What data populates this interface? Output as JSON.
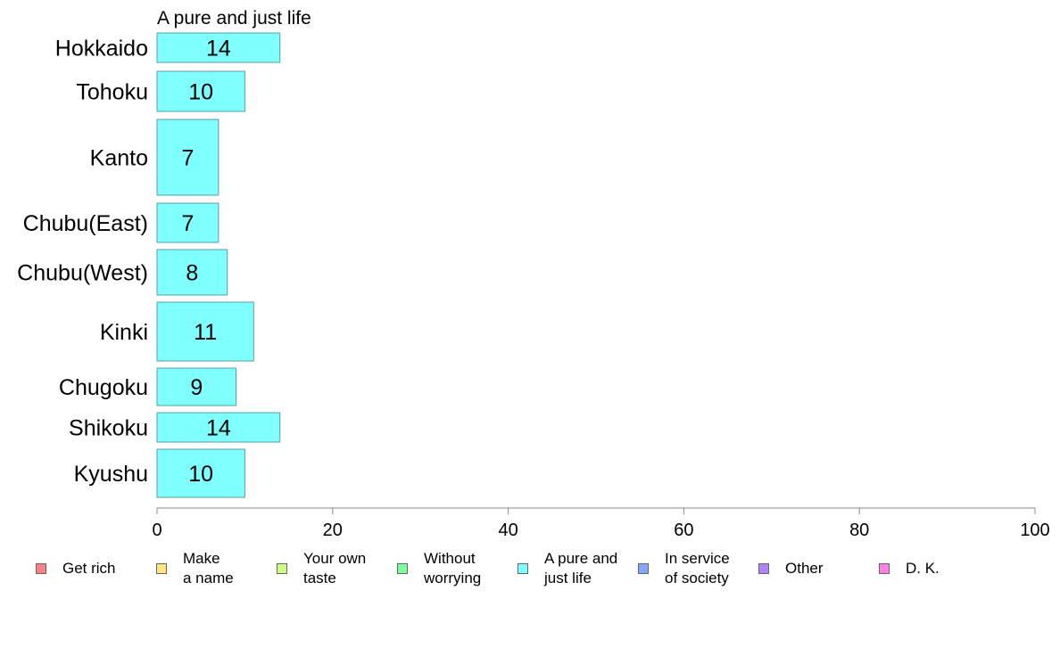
{
  "chart_data": {
    "type": "bar",
    "orientation": "horizontal",
    "title": "A pure and just life",
    "categories": [
      "Hokkaido",
      "Tohoku",
      "Kanto",
      "Chubu(East)",
      "Chubu(West)",
      "Kinki",
      "Chugoku",
      "Shikoku",
      "Kyushu"
    ],
    "values": [
      14,
      10,
      7,
      7,
      8,
      11,
      9,
      14,
      10
    ],
    "bar_labels": [
      "14",
      "10",
      "7",
      "7",
      "8",
      "11",
      "9",
      "14",
      "10"
    ],
    "xlim": [
      0,
      100
    ],
    "x_ticks": [
      0,
      20,
      40,
      60,
      80,
      100
    ],
    "x_tick_labels": [
      "0",
      "20",
      "40",
      "60",
      "80",
      "100"
    ],
    "bar_color": "#80ffff",
    "bar_edge_color": "#5a9ea0",
    "grid": false,
    "legend_position": "bottom",
    "legend": [
      {
        "label": "Get rich",
        "color": "#ff8080"
      },
      {
        "label": "Make\na name",
        "color": "#ffe680"
      },
      {
        "label": "Your own\ntaste",
        "color": "#ccff80"
      },
      {
        "label": "Without\nworrying",
        "color": "#80ff99"
      },
      {
        "label": "A pure and\njust life",
        "color": "#80ffff"
      },
      {
        "label": "In service\nof society",
        "color": "#80aaff"
      },
      {
        "label": "Other",
        "color": "#b380ff"
      },
      {
        "label": "D. K.",
        "color": "#ff80e6"
      }
    ]
  }
}
